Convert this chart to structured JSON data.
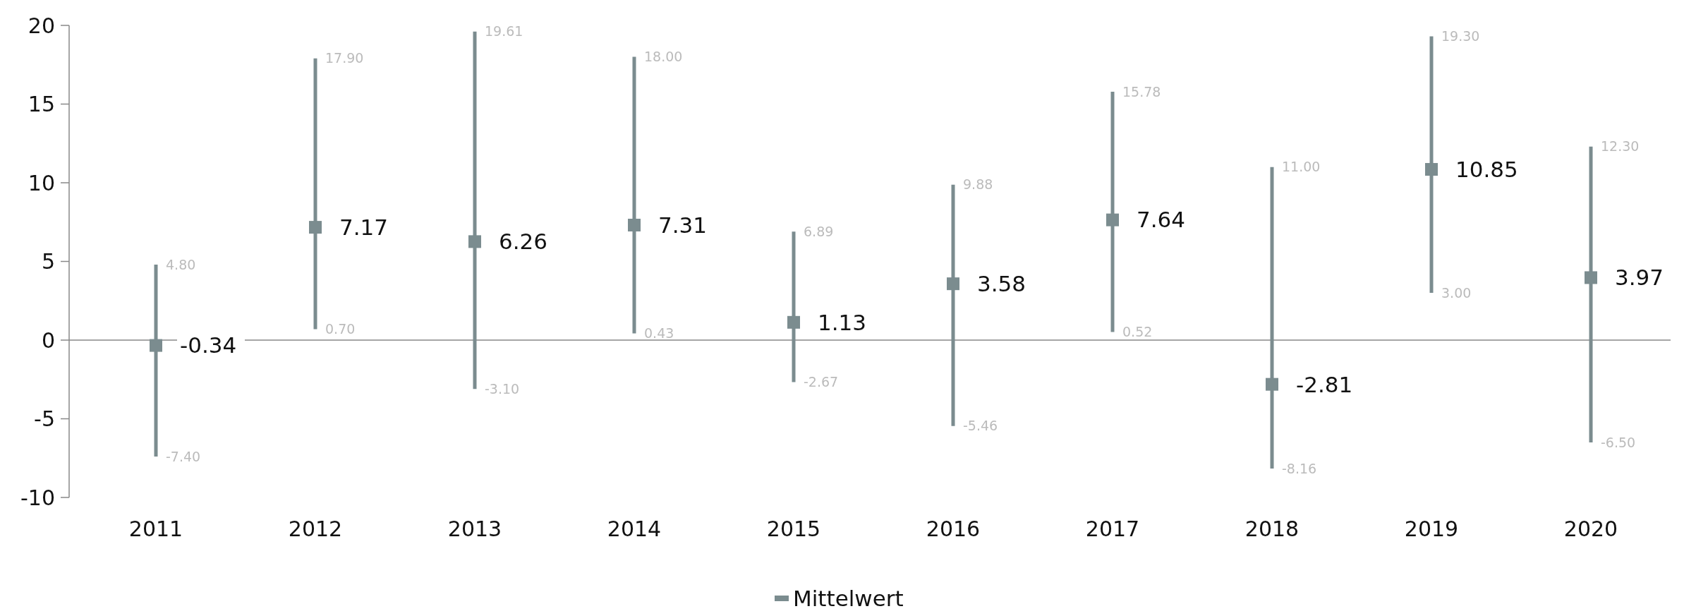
{
  "chart_data": {
    "type": "scatter",
    "categories": [
      "2011",
      "2012",
      "2013",
      "2014",
      "2015",
      "2016",
      "2017",
      "2018",
      "2019",
      "2020"
    ],
    "series": [
      {
        "name": "Mittelwert",
        "color": "#7b8c8f",
        "values": [
          -0.34,
          7.17,
          6.26,
          7.31,
          1.13,
          3.58,
          7.64,
          -2.81,
          10.85,
          3.97
        ],
        "errors": [
          [
            -7.4,
            4.8
          ],
          [
            0.7,
            17.9
          ],
          [
            -3.1,
            19.61
          ],
          [
            0.43,
            18.0
          ],
          [
            -2.67,
            6.89
          ],
          [
            -5.46,
            9.88
          ],
          [
            0.52,
            15.78
          ],
          [
            -8.16,
            11.0
          ],
          [
            3.0,
            19.3
          ],
          [
            -6.5,
            12.3
          ]
        ]
      }
    ],
    "annotations": [
      {
        "text": "4.80",
        "x": "2011",
        "y": 4.8
      },
      {
        "text": "-7.40",
        "x": "2011",
        "y": -7.4
      },
      {
        "text": "17.90",
        "x": "2012",
        "y": 17.9
      },
      {
        "text": "0.70",
        "x": "2012",
        "y": 0.7
      },
      {
        "text": "19.61",
        "x": "2013",
        "y": 19.61
      },
      {
        "text": "-3.10",
        "x": "2013",
        "y": -3.1
      },
      {
        "text": "18.00",
        "x": "2014",
        "y": 18.0
      },
      {
        "text": "0.43",
        "x": "2014",
        "y": 0.43
      },
      {
        "text": "6.89",
        "x": "2015",
        "y": 6.89
      },
      {
        "text": "-2.67",
        "x": "2015",
        "y": -2.67
      },
      {
        "text": "9.88",
        "x": "2016",
        "y": 9.88
      },
      {
        "text": "-5.46",
        "x": "2016",
        "y": -5.46
      },
      {
        "text": "15.78",
        "x": "2017",
        "y": 15.78
      },
      {
        "text": "0.52",
        "x": "2017",
        "y": 0.52
      },
      {
        "text": "11.00",
        "x": "2018",
        "y": 11.0
      },
      {
        "text": "-8.16",
        "x": "2018",
        "y": -8.16
      },
      {
        "text": "19.30",
        "x": "2019",
        "y": 19.3
      },
      {
        "text": "3.00",
        "x": "2019",
        "y": 3.0
      },
      {
        "text": "12.30",
        "x": "2020",
        "y": 12.3
      },
      {
        "text": "-6.50",
        "x": "2020",
        "y": -6.5
      }
    ],
    "ylim": [
      -10,
      20
    ],
    "yticks": [
      -10,
      -5,
      0,
      5,
      10,
      15,
      20
    ],
    "data_labels": true,
    "legend": "bottom",
    "marker": "square",
    "grid": false
  }
}
